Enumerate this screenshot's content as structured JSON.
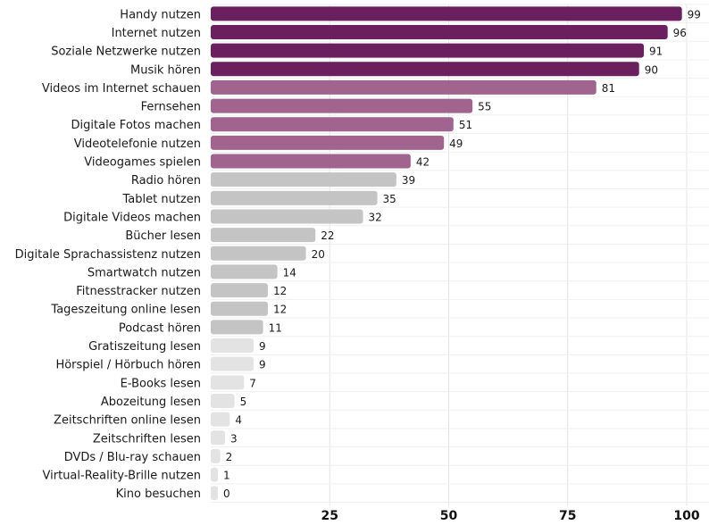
{
  "chart_data": {
    "type": "bar",
    "orientation": "horizontal",
    "categories": [
      "Handy nutzen",
      "Internet nutzen",
      "Soziale Netzwerke nutzen",
      "Musik hören",
      "Videos im Internet schauen",
      "Fernsehen",
      "Digitale Fotos machen",
      "Videotelefonie nutzen",
      "Videogames spielen",
      "Radio hören",
      "Tablet nutzen",
      "Digitale Videos machen",
      "Bücher lesen",
      "Digitale Sprachassistenz nutzen",
      "Smartwatch nutzen",
      "Fitnesstracker nutzen",
      "Tageszeitung online lesen",
      "Podcast hören",
      "Gratiszeitung lesen",
      "Hörspiel / Hörbuch hören",
      "E-Books lesen",
      "Abozeitung lesen",
      "Zeitschriften online lesen",
      "Zeitschriften lesen",
      "DVDs / Blu-ray schauen",
      "Virtual-Reality-Brille nutzen",
      "Kino besuchen"
    ],
    "values": [
      99,
      96,
      91,
      90,
      81,
      55,
      51,
      49,
      42,
      39,
      35,
      32,
      22,
      20,
      14,
      12,
      12,
      11,
      9,
      9,
      7,
      5,
      4,
      3,
      2,
      1,
      0
    ],
    "value_labels": [
      "99",
      "96",
      "91",
      "90",
      "81",
      "55",
      "51",
      "49",
      "42",
      "39",
      "35",
      "32",
      "22",
      "20",
      "14",
      "12",
      "12",
      "11",
      "9",
      "9",
      "7",
      "5",
      "4",
      "3",
      "2",
      "1",
      "0"
    ],
    "colors": [
      "#6b1f5e",
      "#6b1f5e",
      "#6b1f5e",
      "#6b1f5e",
      "#a0648f",
      "#a0648f",
      "#a0648f",
      "#a0648f",
      "#a0648f",
      "#c4c4c4",
      "#c4c4c4",
      "#c4c4c4",
      "#c4c4c4",
      "#c4c4c4",
      "#c4c4c4",
      "#c4c4c4",
      "#c4c4c4",
      "#c4c4c4",
      "#e3e3e3",
      "#e3e3e3",
      "#e3e3e3",
      "#e3e3e3",
      "#e3e3e3",
      "#e3e3e3",
      "#e3e3e3",
      "#e3e3e3",
      "#e3e3e3"
    ],
    "xlim": [
      0,
      100
    ],
    "xticks": [
      25,
      50,
      75,
      100
    ],
    "xtick_labels": [
      "25",
      "50",
      "75",
      "100"
    ],
    "grid": true,
    "legend": false
  }
}
